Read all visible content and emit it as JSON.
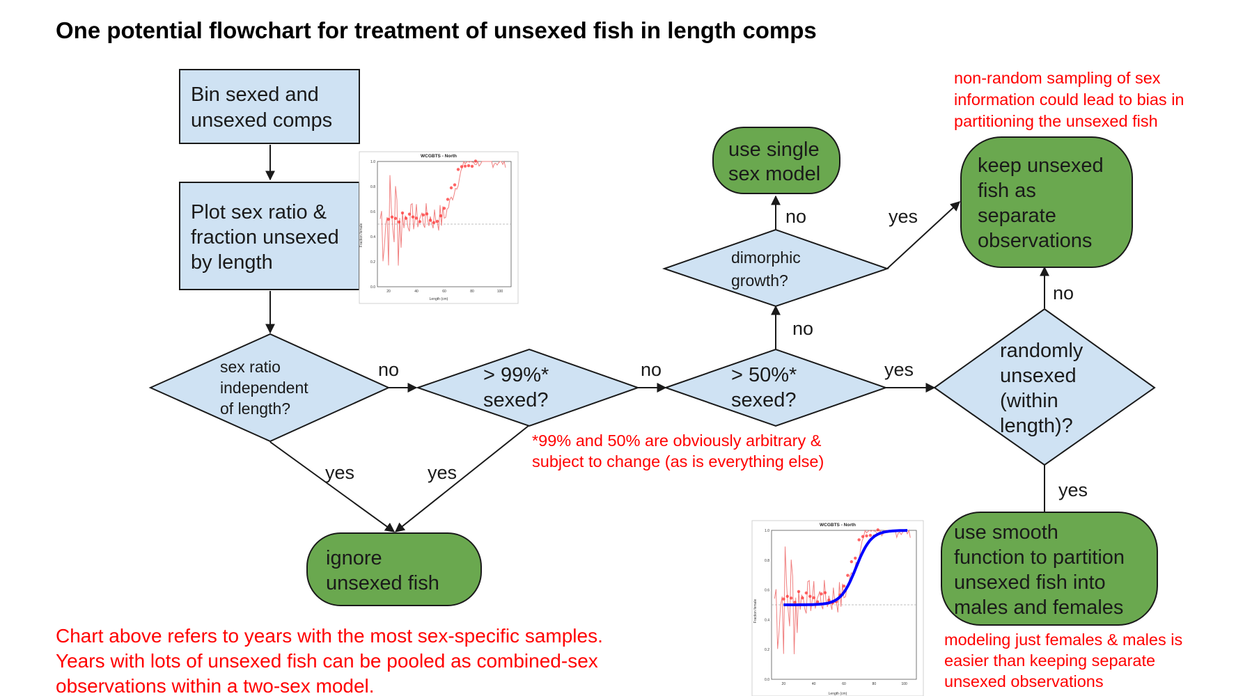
{
  "title": "One potential flowchart for treatment of unsexed fish in length comps",
  "nodes": {
    "bin": [
      "Bin sexed and",
      "unsexed comps"
    ],
    "plot": [
      "Plot sex ratio &",
      "fraction unsexed",
      "by length"
    ],
    "sex_ratio": [
      "sex ratio",
      "independent",
      "of length?"
    ],
    "pct99": [
      "> 99%*",
      "sexed?"
    ],
    "pct50": [
      "> 50%*",
      "sexed?"
    ],
    "dimorphic": [
      "dimorphic",
      "growth?"
    ],
    "random": [
      "randomly",
      "unsexed",
      "(within",
      "length)?"
    ],
    "ignore": [
      "ignore",
      "unsexed fish"
    ],
    "single": [
      "use single",
      "sex model"
    ],
    "keep": [
      "keep unsexed",
      "fish as",
      "separate",
      "observations"
    ],
    "smooth": [
      "use smooth",
      "function to partition",
      "unsexed fish into",
      "males and females"
    ]
  },
  "edge_labels": {
    "sexratio_no": "no",
    "pct99_no": "no",
    "pct50_yes": "yes",
    "pct50_no": "no",
    "dimorphic_no": "no",
    "dimorphic_yes": "yes",
    "random_no": "no",
    "random_yes": "yes",
    "sexratio_yes": "yes",
    "pct99_yes": "yes"
  },
  "notes": {
    "arbitrary": [
      "*99% and 50% are obviously arbitrary &",
      "subject to change (as is everything else)"
    ],
    "nonrandom": [
      "non-random sampling of sex",
      "information could lead to bias in",
      "partitioning the unsexed fish"
    ],
    "modeling": [
      "modeling just females & males is",
      "easier than keeping separate",
      "unsexed observations"
    ],
    "chart_above": [
      "Chart above refers to years with the most sex-specific samples.",
      "Years with lots of unsexed fish can be pooled as combined-sex",
      "observations within a two-sex model."
    ]
  },
  "thumbnails": {
    "top": {
      "title": "WCGBTS - North",
      "x_label": "Length (cm)",
      "y_label": "Fraction female",
      "x_ticks": [
        "20",
        "40",
        "60",
        "80",
        "100"
      ],
      "y_ticks": [
        "0.0",
        "0.2",
        "0.4",
        "0.6",
        "0.8",
        "1.0"
      ],
      "smooth_curve": false
    },
    "bottom": {
      "title": "WCGBTS - North",
      "x_label": "Length (cm)",
      "y_label": "Fraction female",
      "x_ticks": [
        "20",
        "40",
        "60",
        "80",
        "100"
      ],
      "y_ticks": [
        "0.0",
        "0.2",
        "0.4",
        "0.6",
        "0.8",
        "1.0"
      ],
      "smooth_curve": true
    }
  },
  "colors": {
    "process_fill": "#cfe2f3",
    "terminal_fill": "#6aa84f",
    "note_text": "#ff0000",
    "smooth_curve": "#0000ff"
  }
}
